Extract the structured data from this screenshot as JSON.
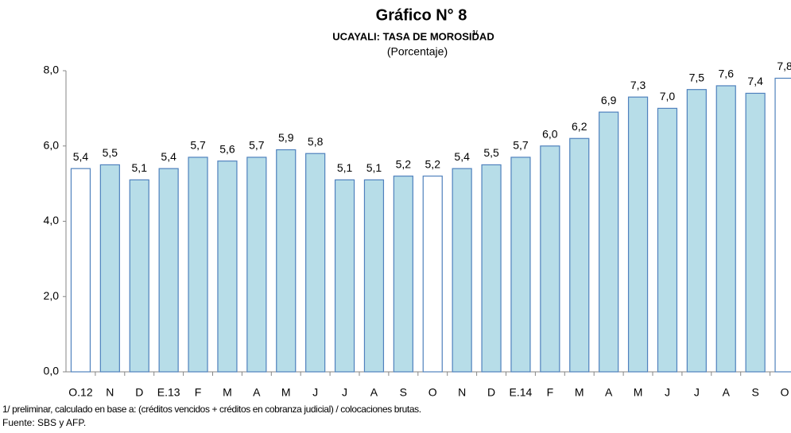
{
  "chart_data": {
    "type": "bar",
    "title": "Gráfico N° 8",
    "subtitle": "UCAYALI: TASA DE MOROSIDAD",
    "subtitle_note": "1/",
    "unit_label": "(Porcentaje)",
    "categories": [
      "O.12",
      "N",
      "D",
      "E.13",
      "F",
      "M",
      "A",
      "M",
      "J",
      "J",
      "A",
      "S",
      "O",
      "N",
      "D",
      "E.14",
      "F",
      "M",
      "A",
      "M",
      "J",
      "J",
      "A",
      "S",
      "O"
    ],
    "values": [
      5.4,
      5.5,
      5.1,
      5.4,
      5.7,
      5.6,
      5.7,
      5.9,
      5.8,
      5.1,
      5.1,
      5.2,
      5.2,
      5.4,
      5.5,
      5.7,
      6.0,
      6.2,
      6.9,
      7.3,
      7.0,
      7.5,
      7.6,
      7.4,
      7.8
    ],
    "value_labels": [
      "5,4",
      "5,5",
      "5,1",
      "5,4",
      "5,7",
      "5,6",
      "5,7",
      "5,9",
      "5,8",
      "5,1",
      "5,1",
      "5,2",
      "5,2",
      "5,4",
      "5,5",
      "5,7",
      "6,0",
      "6,2",
      "6,9",
      "7,3",
      "7,0",
      "7,5",
      "7,6",
      "7,4",
      "7,8"
    ],
    "colors": [
      "#ffffff",
      "#b7dde8",
      "#b7dde8",
      "#b7dde8",
      "#b7dde8",
      "#b7dde8",
      "#b7dde8",
      "#b7dde8",
      "#b7dde8",
      "#b7dde8",
      "#b7dde8",
      "#b7dde8",
      "#ffffff",
      "#b7dde8",
      "#b7dde8",
      "#b7dde8",
      "#b7dde8",
      "#b7dde8",
      "#b7dde8",
      "#b7dde8",
      "#b7dde8",
      "#b7dde8",
      "#b7dde8",
      "#b7dde8",
      "#ffffff"
    ],
    "border_color": "#4f81bd",
    "ylim": [
      0,
      8
    ],
    "yticks": [
      {
        "value": 0,
        "label": "0,0"
      },
      {
        "value": 2,
        "label": "2,0"
      },
      {
        "value": 4,
        "label": "4,0"
      },
      {
        "value": 6,
        "label": "6,0"
      },
      {
        "value": 8,
        "label": "8,0"
      }
    ],
    "footnote": "1/ preliminar, calculado en base a: (créditos vencidos + créditos en cobranza judicial) / colocaciones brutas.",
    "source": "Fuente: SBS y AFP."
  }
}
